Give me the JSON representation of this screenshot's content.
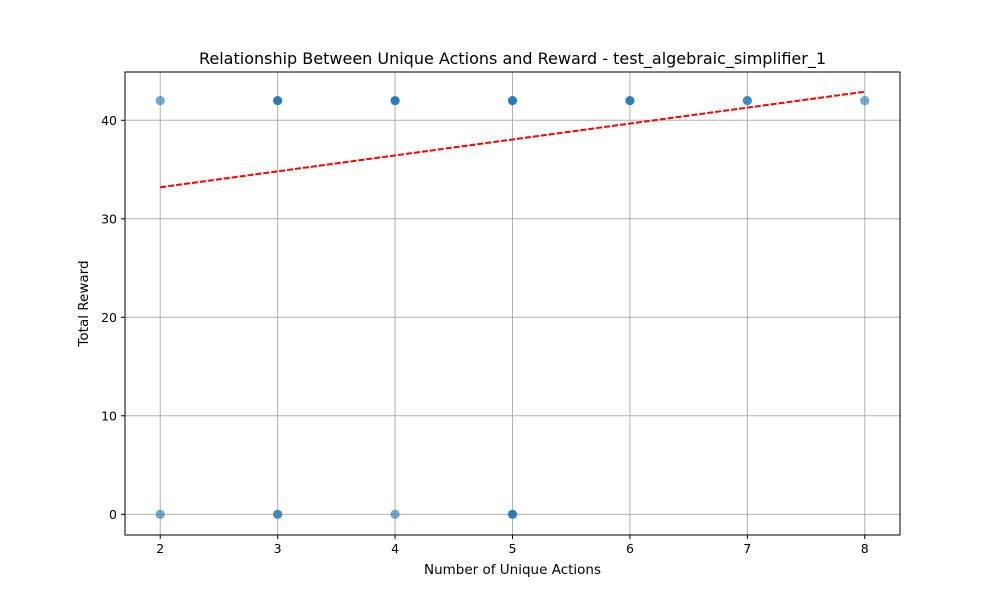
{
  "chart_data": {
    "type": "scatter",
    "title": "Relationship Between Unique Actions and Reward - test_algebraic_simplifier_1",
    "xlabel": "Number of Unique Actions",
    "ylabel": "Total Reward",
    "xlim": [
      1.7,
      8.3
    ],
    "ylim": [
      -2.1,
      44.9
    ],
    "xticks": [
      2,
      3,
      4,
      5,
      6,
      7,
      8
    ],
    "yticks": [
      0,
      10,
      20,
      30,
      40
    ],
    "grid": true,
    "series": [
      {
        "kind": "points",
        "color": "#1f77b4",
        "points": [
          {
            "x": 2,
            "y": 42,
            "count": 1
          },
          {
            "x": 2,
            "y": 0,
            "count": 1
          },
          {
            "x": 3,
            "y": 42,
            "count": 6
          },
          {
            "x": 3,
            "y": 0,
            "count": 2
          },
          {
            "x": 4,
            "y": 42,
            "count": 6
          },
          {
            "x": 4,
            "y": 0,
            "count": 1
          },
          {
            "x": 5,
            "y": 42,
            "count": 4
          },
          {
            "x": 5,
            "y": 0,
            "count": 3
          },
          {
            "x": 6,
            "y": 42,
            "count": 3
          },
          {
            "x": 7,
            "y": 42,
            "count": 2
          },
          {
            "x": 8,
            "y": 42,
            "count": 1
          }
        ]
      },
      {
        "kind": "trendline",
        "color": "#ff0000",
        "style": "dashed",
        "x": [
          2,
          8
        ],
        "y": [
          33.2,
          42.9
        ]
      }
    ]
  }
}
